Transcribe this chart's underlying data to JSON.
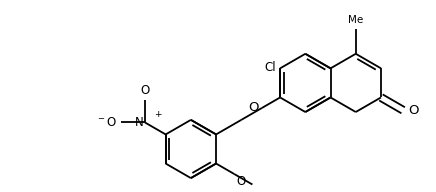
{
  "bg": "#ffffff",
  "lw": 1.3,
  "fs_label": 8.5,
  "fs_small": 7.5,
  "bl": 0.3,
  "fig_w": 4.36,
  "fig_h": 1.92,
  "dpi": 100,
  "xlim": [
    0,
    4.36
  ],
  "ylim": [
    0,
    1.92
  ]
}
